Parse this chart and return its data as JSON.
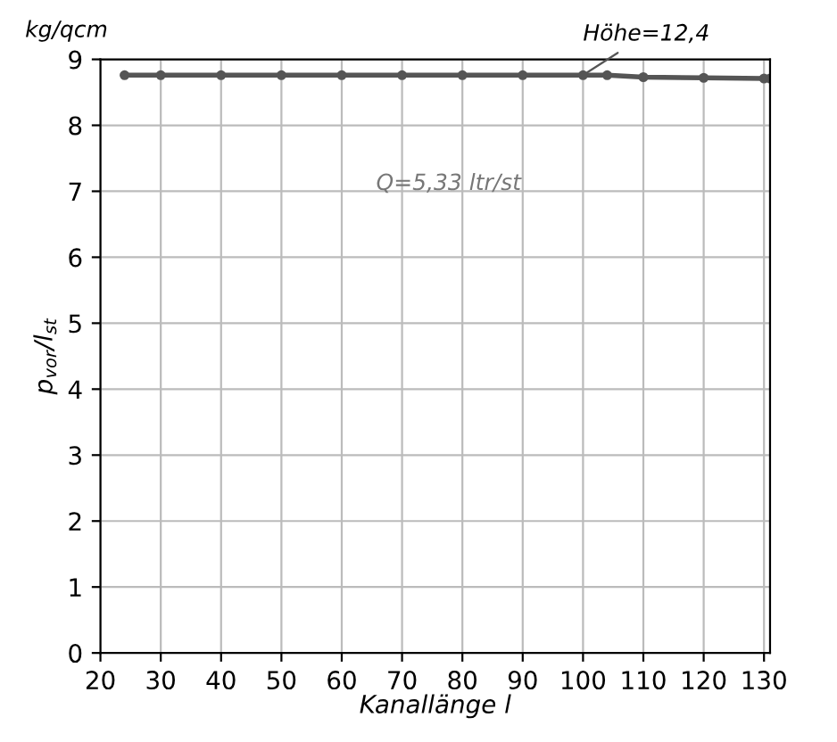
{
  "chart_data": {
    "type": "line",
    "xlabel": "Kanallänge l",
    "ylabel": "p$_{vor}$/l$_{st}$",
    "x": [
      24,
      30,
      40,
      50,
      60,
      70,
      80,
      90,
      100,
      104,
      110,
      120,
      130,
      131
    ],
    "series": [
      {
        "color": "#555555",
        "values": [
          8.76,
          8.76,
          8.76,
          8.76,
          8.76,
          8.76,
          8.76,
          8.76,
          8.76,
          8.76,
          8.73,
          8.72,
          8.71,
          8.71
        ]
      }
    ],
    "marker": "circle",
    "line_style": "solid",
    "xlim": [
      20,
      131
    ],
    "ylim": [
      0,
      9
    ],
    "xticks": [
      20,
      30,
      40,
      50,
      60,
      70,
      80,
      90,
      100,
      110,
      120,
      130
    ],
    "yticks": [
      0,
      1,
      2,
      3,
      4,
      5,
      6,
      7,
      8,
      9
    ],
    "grid": true,
    "annotations": [
      "kg/qcm",
      {
        "text": "Höhe=12,4",
        "x": 100,
        "y": 8.76
      },
      "Q=5,33 ltr/st"
    ]
  }
}
